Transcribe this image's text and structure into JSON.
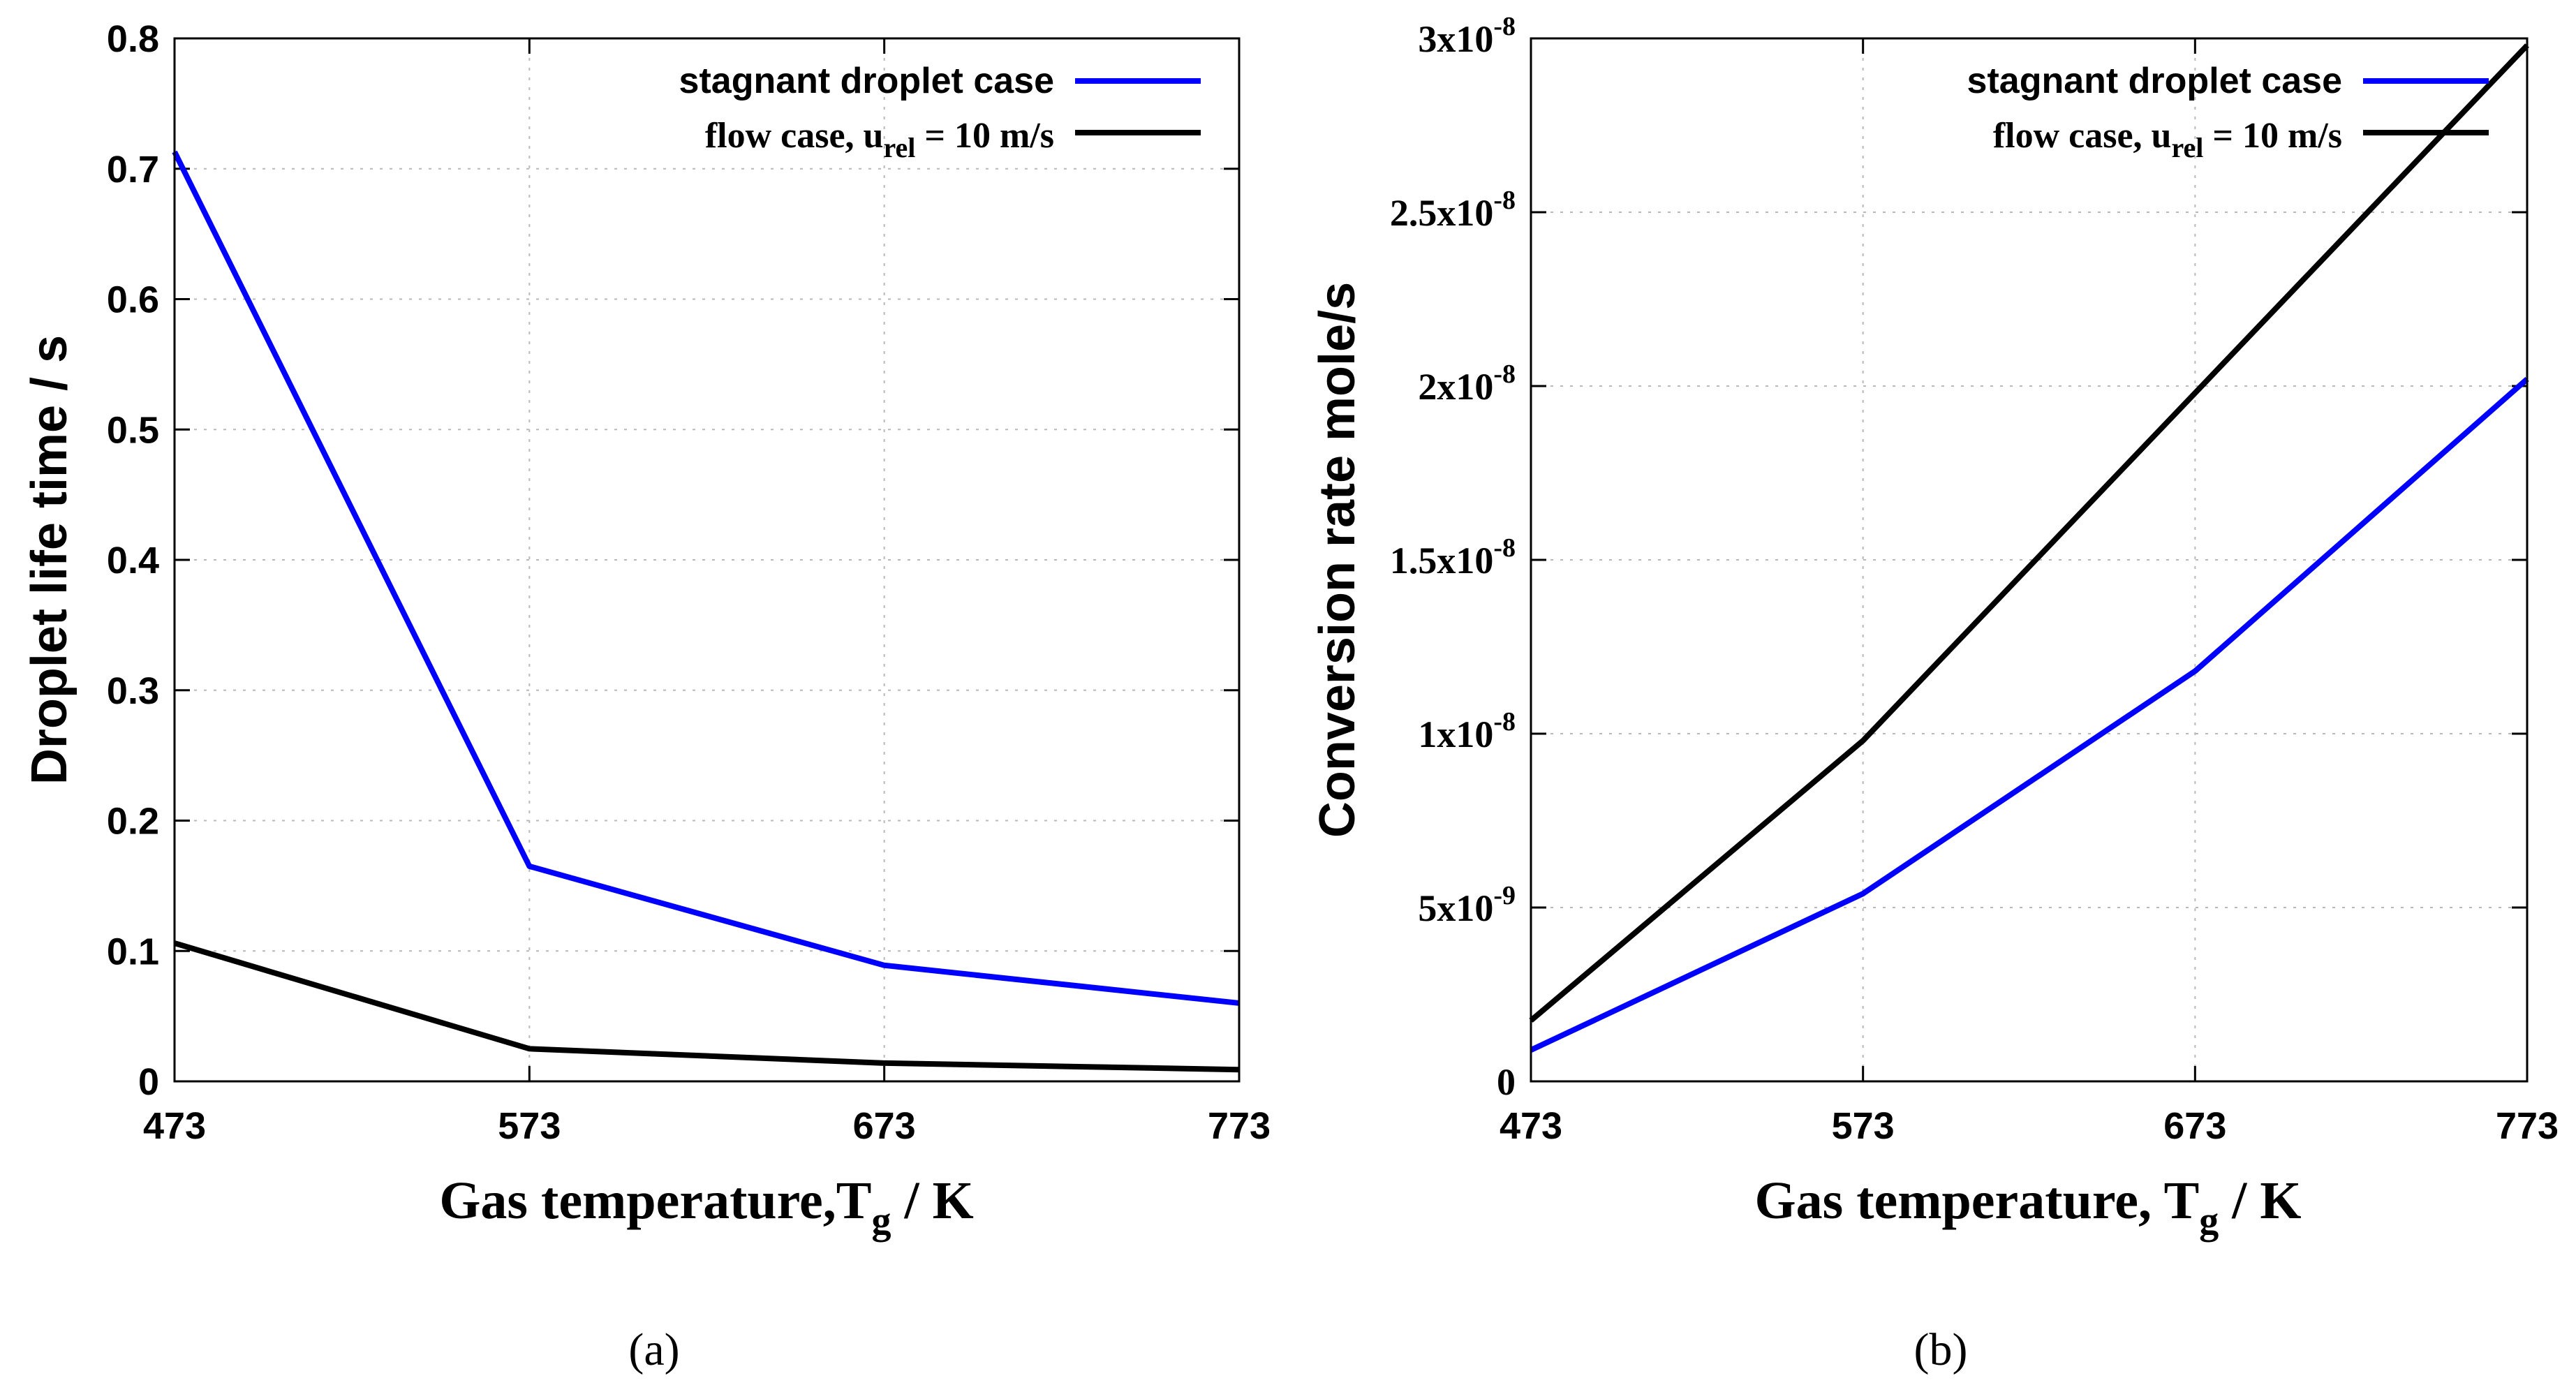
{
  "chart_data": [
    {
      "type": "line",
      "panel_label": "(a)",
      "xlabel_main": "Gas temperature,T",
      "xlabel_sub": "g",
      "xlabel_tail": " / K",
      "ylabel": "Droplet life time / s",
      "x": [
        473,
        573,
        673,
        773
      ],
      "xticks": [
        "473",
        "573",
        "673",
        "773"
      ],
      "yticks": [
        0,
        0.1,
        0.2,
        0.3,
        0.4,
        0.5,
        0.6,
        0.7,
        0.8
      ],
      "ytick_labels": [
        "0",
        "0.1",
        "0.2",
        "0.3",
        "0.4",
        "0.5",
        "0.6",
        "0.7",
        "0.8"
      ],
      "xlim": [
        473,
        773
      ],
      "ylim": [
        0,
        0.8
      ],
      "grid": true,
      "legend_position": "top-right",
      "series": [
        {
          "name": "stagnant droplet case",
          "color": "#0000ff",
          "values": [
            0.713,
            0.165,
            0.089,
            0.06
          ]
        },
        {
          "name": "flow case, u",
          "name_sub": "rel",
          "name_tail": " = 10 m/s",
          "color": "#000000",
          "values": [
            0.106,
            0.025,
            0.014,
            0.009
          ]
        }
      ]
    },
    {
      "type": "line",
      "panel_label": "(b)",
      "xlabel_main": "Gas temperature, T",
      "xlabel_sub": "g",
      "xlabel_tail": " / K",
      "ylabel": "Conversion rate mole/s",
      "x": [
        473,
        573,
        673,
        773
      ],
      "xticks": [
        "473",
        "573",
        "673",
        "773"
      ],
      "yticks": [
        0,
        5e-09,
        1e-08,
        1.5e-08,
        2e-08,
        2.5e-08,
        3e-08
      ],
      "ytick_labels": [
        {
          "mant": "0",
          "exp": ""
        },
        {
          "mant": "5x10",
          "exp": "-9"
        },
        {
          "mant": "1x10",
          "exp": "-8"
        },
        {
          "mant": "1.5x10",
          "exp": "-8"
        },
        {
          "mant": "2x10",
          "exp": "-8"
        },
        {
          "mant": "2.5x10",
          "exp": "-8"
        },
        {
          "mant": "3x10",
          "exp": "-8"
        }
      ],
      "xlim": [
        473,
        773
      ],
      "ylim": [
        0,
        3e-08
      ],
      "grid": true,
      "legend_position": "top-right",
      "series": [
        {
          "name": "stagnant droplet case",
          "color": "#0000ff",
          "values": [
            9e-10,
            5.4e-09,
            1.18e-08,
            2.02e-08
          ]
        },
        {
          "name": "flow case, u",
          "name_sub": "rel",
          "name_tail": " = 10 m/s",
          "color": "#000000",
          "values": [
            1.75e-09,
            9.8e-09,
            1.98e-08,
            2.98e-08
          ]
        }
      ]
    }
  ]
}
